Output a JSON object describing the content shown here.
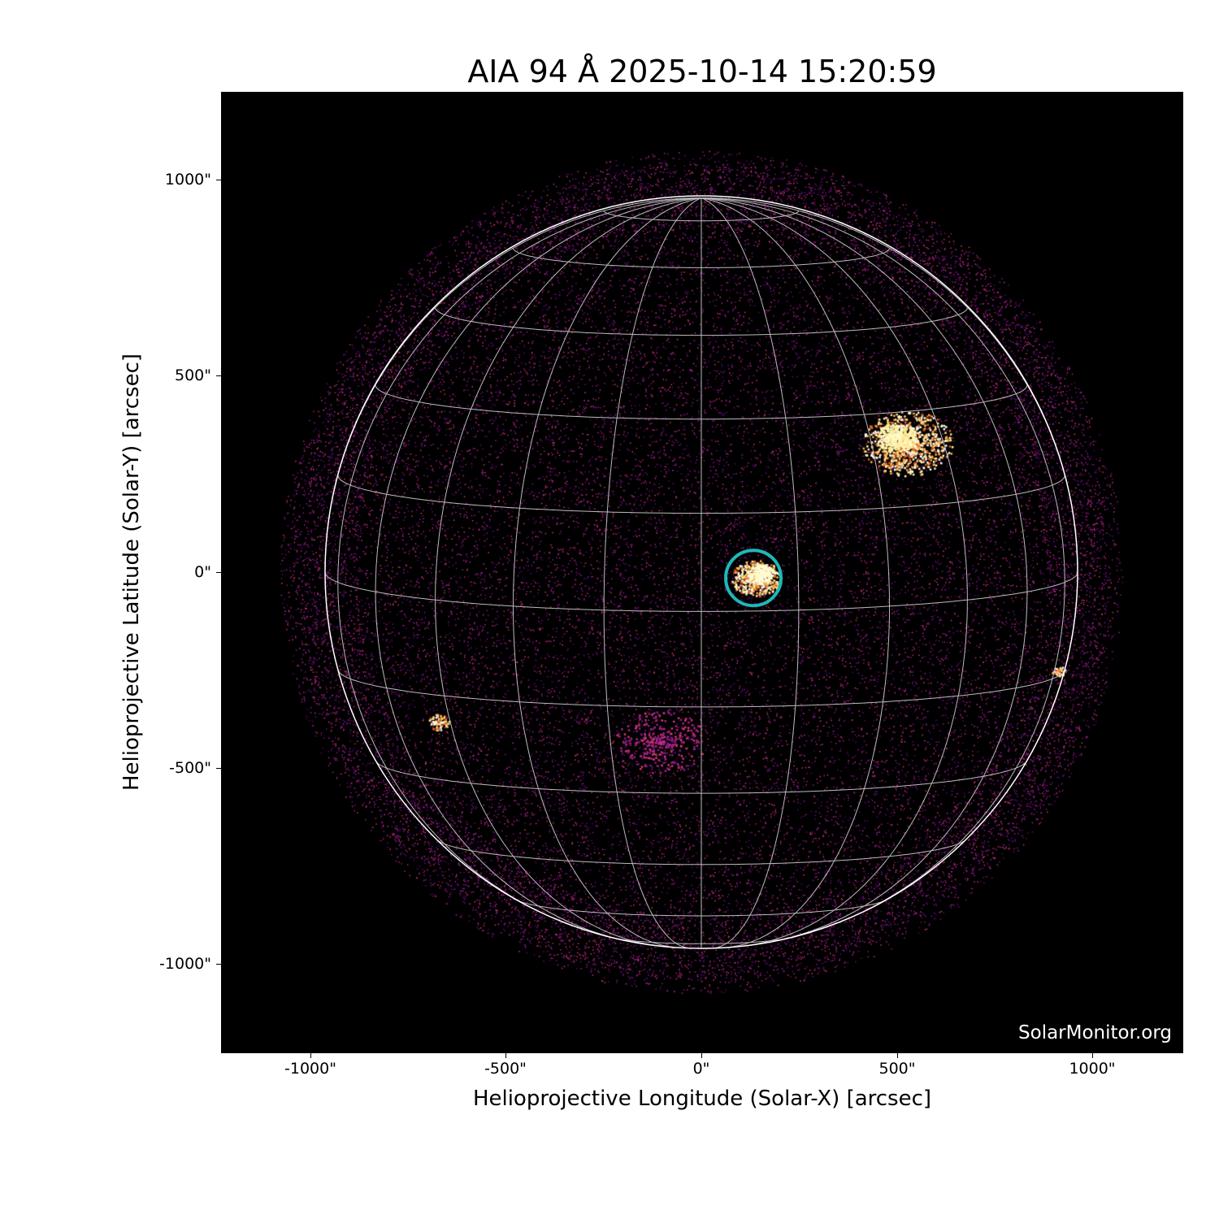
{
  "title": "AIA 94 Å 2025-10-14 15:20:59",
  "x_axis": {
    "label": "Helioprojective Longitude (Solar-X) [arcsec]",
    "ticks": [
      "-1000\"",
      "-500\"",
      "0\"",
      "500\"",
      "1000\""
    ],
    "tick_values": [
      -1000,
      -500,
      0,
      500,
      1000
    ],
    "range": [
      -1230,
      1230
    ]
  },
  "y_axis": {
    "label": "Helioprojective Latitude (Solar-Y) [arcsec]",
    "ticks": [
      "1000\"",
      "500\"",
      "0\"",
      "-500\"",
      "-1000\""
    ],
    "tick_values": [
      1000,
      500,
      0,
      -500,
      -1000
    ],
    "range": [
      -1230,
      1230
    ]
  },
  "watermark": "SolarMonitor.org",
  "image": {
    "colormap": "sdoaia94",
    "grid_spacing_deg": 15,
    "highlight_circle_color": "#1fb8b8",
    "highlight_center_arcsec": [
      133,
      -15
    ]
  }
}
